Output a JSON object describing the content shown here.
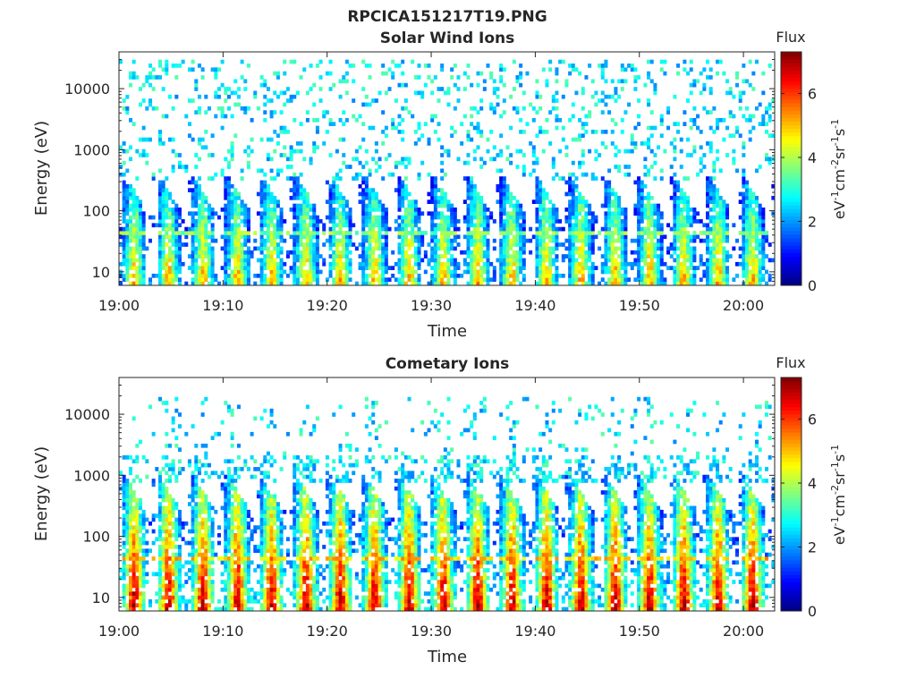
{
  "figure": {
    "main_title": "RPCICA151217T19.PNG"
  },
  "chart_data": [
    {
      "type": "heatmap",
      "title": "Solar Wind Ions",
      "xlabel": "Time",
      "ylabel": "Energy (eV)",
      "x_ticks": [
        "19:00",
        "19:10",
        "19:20",
        "19:30",
        "19:40",
        "19:50",
        "20:00"
      ],
      "x_range_minutes": [
        0,
        63
      ],
      "y_scale": "log",
      "y_ticks": [
        10,
        100,
        1000,
        10000
      ],
      "y_tick_labels": [
        "10",
        "100",
        "1000",
        "10000"
      ],
      "y_range": [
        6,
        40000
      ],
      "colorbar": {
        "title": "Flux",
        "unit_base": "eV",
        "unit_exp1": "-1",
        "unit_mid1": "cm",
        "unit_exp2": "-2",
        "unit_mid2": "sr",
        "unit_exp3": "-1",
        "unit_mid3": "s",
        "unit_exp4": "-1",
        "range": [
          0,
          7.3
        ],
        "ticks": [
          0,
          2,
          4,
          6
        ],
        "tick_labels": [
          "0",
          "2",
          "4",
          "6"
        ],
        "colormap": "jet"
      },
      "grid": false,
      "pulse_period_minutes": 3.3,
      "core_energy_range_eV": [
        6,
        300
      ],
      "peak_flux": 5.2,
      "sparse_energy_range_eV": [
        300,
        30000
      ]
    },
    {
      "type": "heatmap",
      "title": "Cometary Ions",
      "xlabel": "Time",
      "ylabel": "Energy (eV)",
      "x_ticks": [
        "19:00",
        "19:10",
        "19:20",
        "19:30",
        "19:40",
        "19:50",
        "20:00"
      ],
      "x_range_minutes": [
        0,
        63
      ],
      "y_scale": "log",
      "y_ticks": [
        10,
        100,
        1000,
        10000
      ],
      "y_tick_labels": [
        "10",
        "100",
        "1000",
        "10000"
      ],
      "y_range": [
        6,
        40000
      ],
      "colorbar": {
        "title": "Flux",
        "unit_base": "eV",
        "unit_exp1": "-1",
        "unit_mid1": "cm",
        "unit_exp2": "-2",
        "unit_mid2": "sr",
        "unit_exp3": "-1",
        "unit_mid3": "s",
        "unit_exp4": "-1",
        "range": [
          0,
          7.3
        ],
        "ticks": [
          0,
          2,
          4,
          6
        ],
        "tick_labels": [
          "0",
          "2",
          "4",
          "6"
        ],
        "colormap": "jet"
      },
      "grid": false,
      "pulse_period_minutes": 3.3,
      "core_energy_range_eV": [
        6,
        800
      ],
      "peak_flux": 7.0,
      "sparse_energy_range_eV": [
        800,
        20000
      ]
    }
  ]
}
